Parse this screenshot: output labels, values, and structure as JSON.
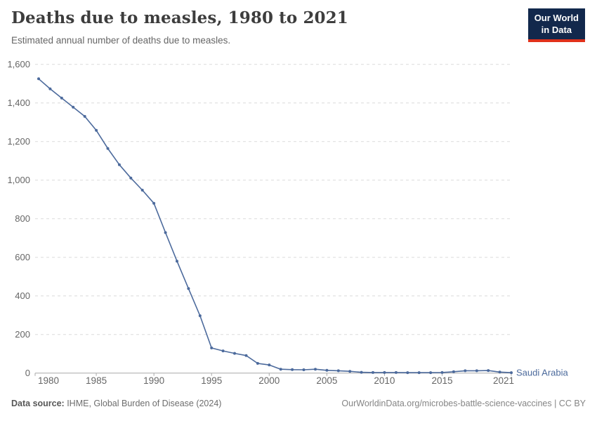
{
  "header": {
    "title": "Deaths due to measles, 1980 to 2021",
    "subtitle": "Estimated annual number of deaths due to measles.",
    "logo": {
      "line1": "Our World",
      "line2": "in Data",
      "bg_color": "#12284C",
      "accent_color": "#E0311B"
    }
  },
  "chart_data": {
    "type": "line",
    "title": "Deaths due to measles, 1980 to 2021",
    "xlabel": "",
    "ylabel": "",
    "xlim": [
      1980,
      2021
    ],
    "ylim": [
      0,
      1600
    ],
    "grid": "horizontal-dashed",
    "legend_position": "end-of-line-label",
    "x": [
      1980,
      1981,
      1982,
      1983,
      1984,
      1985,
      1986,
      1987,
      1988,
      1989,
      1990,
      1991,
      1992,
      1993,
      1994,
      1995,
      1996,
      1997,
      1998,
      1999,
      2000,
      2001,
      2002,
      2003,
      2004,
      2005,
      2006,
      2007,
      2008,
      2009,
      2010,
      2011,
      2012,
      2013,
      2014,
      2015,
      2016,
      2017,
      2018,
      2019,
      2020,
      2021
    ],
    "series": [
      {
        "name": "Saudi Arabia",
        "color": "#4C6A9C",
        "values": [
          1525,
          1473,
          1425,
          1378,
          1330,
          1258,
          1164,
          1080,
          1011,
          948,
          880,
          728,
          580,
          438,
          297,
          130,
          115,
          102,
          91,
          50,
          42,
          20,
          18,
          17,
          20,
          14,
          12,
          9,
          4,
          3,
          3,
          3,
          2,
          2,
          2,
          3,
          7,
          12,
          12,
          13,
          5,
          2
        ]
      }
    ],
    "y_ticks": [
      0,
      200,
      400,
      600,
      800,
      1000,
      1200,
      1400,
      1600
    ],
    "y_tick_labels": [
      "0",
      "200",
      "400",
      "600",
      "800",
      "1,000",
      "1,200",
      "1,400",
      "1,600"
    ],
    "x_tick_years": [
      1980,
      1985,
      1990,
      1995,
      2000,
      2005,
      2010,
      2015,
      2021
    ],
    "x_tick_labels": [
      "1980",
      "1985",
      "1990",
      "1995",
      "2000",
      "2005",
      "2010",
      "2015",
      "2021"
    ],
    "colors": {
      "gridline": "#dcdcdc",
      "axis": "#a8a8a8",
      "tick_label": "#666666"
    }
  },
  "footer": {
    "source_label": "Data source:",
    "source_text": " IHME, Global Burden of Disease (2024)",
    "credit": "OurWorldinData.org/microbes-battle-science-vaccines | CC BY"
  }
}
